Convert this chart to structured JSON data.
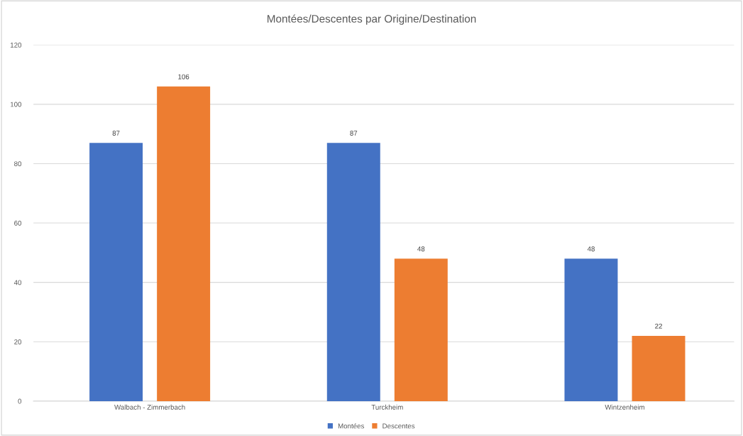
{
  "chart_data": {
    "type": "bar",
    "title": "Montées/Descentes par Origine/Destination",
    "categories": [
      "Walbach - Zimmerbach",
      "Turckheim",
      "Wintzenheim"
    ],
    "series": [
      {
        "name": "Montées",
        "color": "#4472c4",
        "values": [
          87,
          87,
          48
        ]
      },
      {
        "name": "Descentes",
        "color": "#ed7d31",
        "values": [
          106,
          48,
          22
        ]
      }
    ],
    "ylim": [
      0,
      120
    ],
    "yticks": [
      0,
      20,
      40,
      60,
      80,
      100,
      120
    ],
    "grid": "y",
    "legend": "bottom",
    "data_labels": true
  }
}
